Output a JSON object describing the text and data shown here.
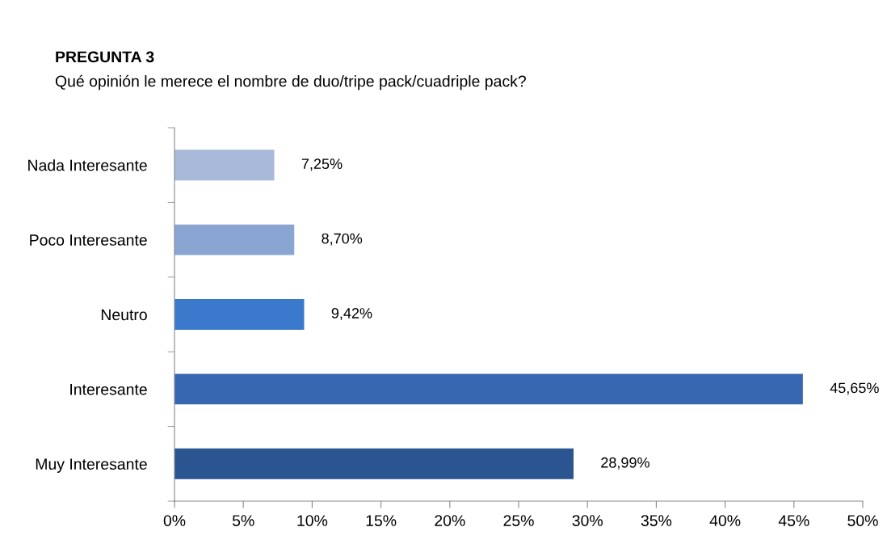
{
  "chart_data": {
    "type": "bar",
    "orientation": "horizontal",
    "title": "PREGUNTA 3",
    "subtitle": "Qué opinión le merece el nombre de duo/tripe pack/cuadriple pack?",
    "categories": [
      "Nada Interesante",
      "Poco Interesante",
      "Neutro",
      "Interesante",
      "Muy Interesante"
    ],
    "values": [
      7.25,
      8.7,
      9.42,
      45.65,
      28.99
    ],
    "colors": [
      "#a9b9d9",
      "#8ba5d3",
      "#3b79cc",
      "#3767b1",
      "#2b5591"
    ],
    "value_labels": [
      "7,25%",
      "8,70%",
      "9,42%",
      "45,65%",
      "28,99%"
    ],
    "xlim": [
      0,
      50
    ],
    "xticks": [
      {
        "value": 0,
        "label": "0%"
      },
      {
        "value": 5,
        "label": "5%"
      },
      {
        "value": 10,
        "label": "10%"
      },
      {
        "value": 15,
        "label": "15%"
      },
      {
        "value": 20,
        "label": "20%"
      },
      {
        "value": 25,
        "label": "25%"
      },
      {
        "value": 30,
        "label": "30%"
      },
      {
        "value": 35,
        "label": "35%"
      },
      {
        "value": 40,
        "label": "40%"
      },
      {
        "value": 45,
        "label": "45%"
      },
      {
        "value": 50,
        "label": "50%"
      }
    ],
    "grid": false
  }
}
